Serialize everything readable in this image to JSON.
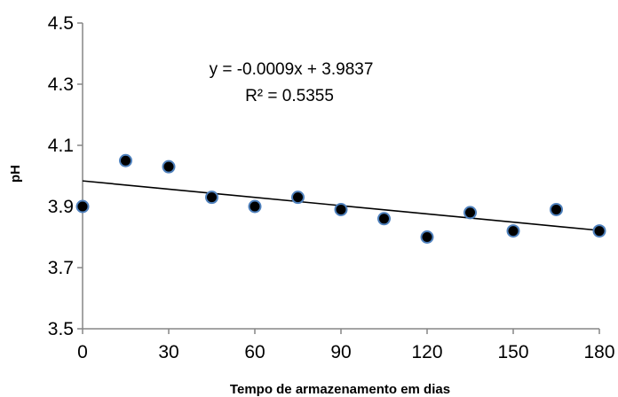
{
  "chart_data": {
    "type": "scatter",
    "title": "",
    "xlabel": "Tempo de armazenamento em dias",
    "ylabel": "pH",
    "xlim": [
      0,
      180
    ],
    "ylim": [
      3.5,
      4.5
    ],
    "xticks": [
      "0",
      "30",
      "60",
      "90",
      "120",
      "150",
      "180"
    ],
    "yticks": [
      "4.5",
      "4.3",
      "4.1",
      "3.9",
      "3.7",
      "3.5"
    ],
    "grid": false,
    "legend": "none",
    "series": [
      {
        "x": [
          0,
          15,
          30,
          45,
          60,
          75,
          90,
          105,
          120,
          135,
          150,
          165,
          180
        ],
        "y": [
          3.9,
          4.05,
          4.03,
          3.93,
          3.9,
          3.93,
          3.89,
          3.86,
          3.8,
          3.88,
          3.82,
          3.89,
          3.82
        ],
        "marker_color": "#000000",
        "marker_edge_color": "#4f81bd"
      }
    ],
    "trendline": {
      "slope": -0.0009,
      "intercept": 3.9837,
      "equation": "y = -0.0009x + 3.9837",
      "r_squared": "R² = 0.5355",
      "color": "#000000"
    }
  }
}
